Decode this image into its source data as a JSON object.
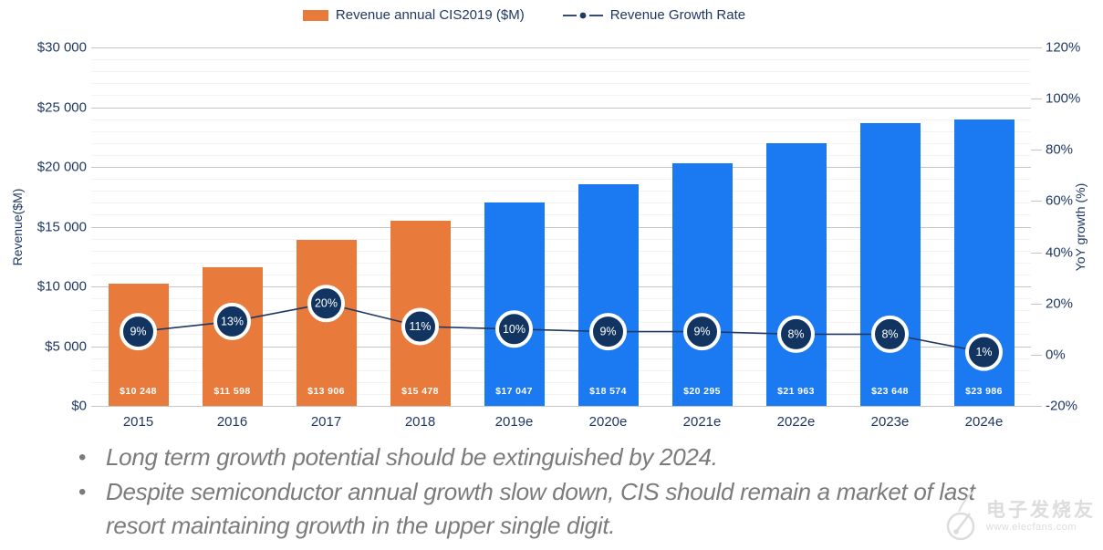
{
  "legend": {
    "items": [
      {
        "label": "Revenue annual CIS2019 ($M)",
        "marker": "bar"
      },
      {
        "label": "Revenue Growth Rate",
        "marker": "line"
      }
    ]
  },
  "chart_data": {
    "type": "combo-bar-line",
    "categories": [
      "2015",
      "2016",
      "2017",
      "2018",
      "2019e",
      "2020e",
      "2021e",
      "2022e",
      "2023e",
      "2024e"
    ],
    "series": [
      {
        "name": "Revenue annual CIS2019 ($M)",
        "type": "bar",
        "axis": "left",
        "values": [
          10248,
          11598,
          13906,
          15478,
          17047,
          18574,
          20295,
          21963,
          23648,
          23986
        ],
        "data_labels": [
          "$10 248",
          "$11 598",
          "$13 906",
          "$15 478",
          "$17 047",
          "$18 574",
          "$20 295",
          "$21 963",
          "$23 648",
          "$23 986"
        ],
        "point_colors": [
          "#E87A3C",
          "#E87A3C",
          "#E87A3C",
          "#E87A3C",
          "#1B7AF2",
          "#1B7AF2",
          "#1B7AF2",
          "#1B7AF2",
          "#1B7AF2",
          "#1B7AF2"
        ]
      },
      {
        "name": "Revenue Growth Rate",
        "type": "line",
        "axis": "right",
        "values": [
          9,
          13,
          20,
          11,
          10,
          9,
          9,
          8,
          8,
          1
        ],
        "data_labels": [
          "9%",
          "13%",
          "20%",
          "11%",
          "10%",
          "9%",
          "9%",
          "8%",
          "8%",
          "1%"
        ]
      }
    ],
    "left_axis": {
      "title": "Revenue($M)",
      "min": 0,
      "max": 30000,
      "tick_step": 5000,
      "minor_step": 1000,
      "tick_labels": [
        "$0",
        "$5 000",
        "$10 000",
        "$15 000",
        "$20 000",
        "$25 000",
        "$30 000"
      ]
    },
    "right_axis": {
      "title": "YoY growth (%)",
      "min": -20,
      "max": 120,
      "tick_step": 20,
      "tick_labels": [
        "-20%",
        "0%",
        "20%",
        "40%",
        "60%",
        "80%",
        "100%",
        "120%"
      ]
    },
    "grid": {
      "major": true,
      "minor": true
    },
    "legend_position": "top"
  },
  "notes": {
    "bullets": [
      "Long term growth potential should be extinguished by 2024.",
      "Despite semiconductor annual growth slow down, CIS should remain a market of last resort maintaining growth in the upper single digit."
    ]
  },
  "watermark": {
    "brand": "电子发烧友",
    "url": "www.elecfans.com"
  },
  "colors": {
    "bar_actual": "#E87A3C",
    "bar_forecast": "#1B7AF2",
    "axis_text": "#1F3864",
    "line": "#1F3864",
    "marker_fill": "#113560",
    "marker_ring": "#FFFFFF",
    "grid_major": "#C6C6C6",
    "grid_minor": "#F3F3F3",
    "note_text": "#7B7B7B"
  }
}
